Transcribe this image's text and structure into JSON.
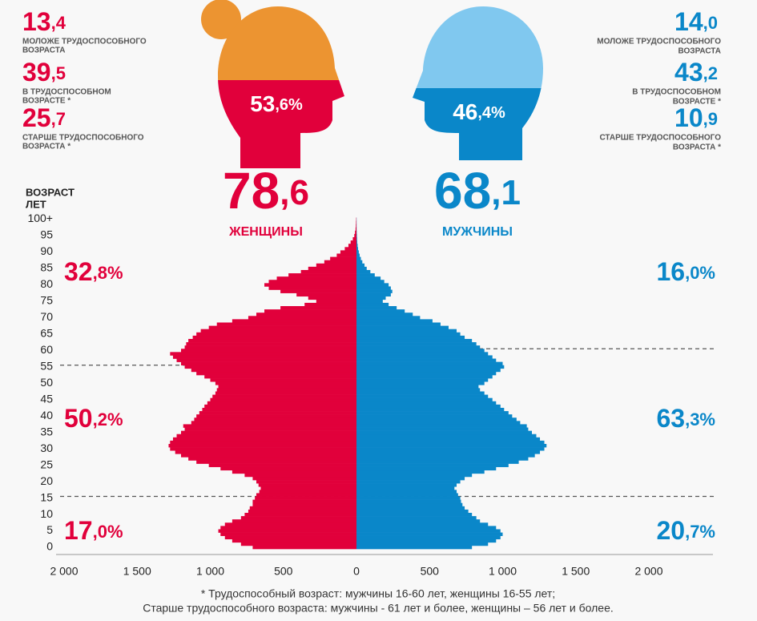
{
  "header": {
    "women_stats": [
      {
        "value": "13,4",
        "label": [
          "МОЛОЖЕ ТРУДОСПОСОБНОГО",
          "ВОЗРАСТА"
        ]
      },
      {
        "value": "39,5",
        "label": [
          "В ТРУДОСПОСОБНОМ",
          "ВОЗРАСТЕ *"
        ]
      },
      {
        "value": "25,7",
        "label": [
          "СТАРШЕ ТРУДОСПОСОБНОГО",
          "ВОЗРАСТА *"
        ]
      }
    ],
    "men_stats": [
      {
        "value": "14,0",
        "label": [
          "МОЛОЖЕ ТРУДОСПОСОБНОГО",
          "ВОЗРАСТА"
        ]
      },
      {
        "value": "43,2",
        "label": [
          "В ТРУДОСПОСОБНОМ",
          "ВОЗРАСТЕ *"
        ]
      },
      {
        "value": "10,9",
        "label": [
          "СТАРШЕ ТРУДОСПОСОБНОГО",
          "ВОЗРАСТА *"
        ]
      }
    ],
    "women_share": "53,6%",
    "men_share": "46,4%",
    "women_total": "78,6",
    "men_total": "68,1"
  },
  "chart_data": {
    "type": "pyramid",
    "y_label": [
      "ВОЗРАСТ",
      "ЛЕТ"
    ],
    "categories": [
      0,
      null,
      null,
      null,
      null,
      5,
      null,
      null,
      null,
      null,
      10,
      null,
      null,
      null,
      null,
      15,
      null,
      null,
      null,
      null,
      20,
      null,
      null,
      null,
      null,
      25,
      null,
      null,
      null,
      null,
      30,
      null,
      null,
      null,
      null,
      35,
      null,
      null,
      null,
      null,
      40,
      null,
      null,
      null,
      null,
      45,
      null,
      null,
      null,
      null,
      50,
      null,
      null,
      null,
      null,
      55,
      null,
      null,
      null,
      null,
      60,
      null,
      null,
      null,
      null,
      65,
      null,
      null,
      null,
      null,
      70,
      null,
      null,
      null,
      null,
      75,
      null,
      null,
      null,
      null,
      80,
      null,
      null,
      null,
      null,
      85,
      null,
      null,
      null,
      null,
      90,
      null,
      null,
      null,
      null,
      95,
      null,
      null,
      null,
      null,
      "100+"
    ],
    "series": [
      {
        "name": "ЖЕНЩИНЫ",
        "color": "#e1003b",
        "side": "left",
        "values": [
          710,
          790,
          850,
          900,
          930,
          945,
          930,
          900,
          850,
          790,
          765,
          740,
          730,
          710,
          710,
          695,
          685,
          665,
          655,
          670,
          685,
          710,
          765,
          850,
          930,
          1010,
          1095,
          1150,
          1200,
          1240,
          1275,
          1285,
          1275,
          1255,
          1230,
          1200,
          1175,
          1185,
          1130,
          1110,
          1095,
          1075,
          1055,
          1040,
          1020,
          1000,
          985,
          965,
          955,
          945,
          965,
          1000,
          1040,
          1095,
          1130,
          1175,
          1200,
          1230,
          1255,
          1275,
          1200,
          1175,
          1165,
          1150,
          1120,
          1095,
          1065,
          1010,
          955,
          850,
          740,
          685,
          630,
          520,
          355,
          275,
          330,
          410,
          520,
          600,
          630,
          600,
          545,
          465,
          380,
          330,
          275,
          220,
          180,
          135,
          110,
          80,
          55,
          40,
          25,
          15,
          10,
          6,
          4,
          3,
          2
        ],
        "working_age": [
          16,
          55
        ],
        "group_labels": [
          "32,8%",
          "50,2%",
          "17,0%"
        ]
      },
      {
        "name": "МУЖЧИНЫ",
        "color": "#0a87c9",
        "side": "right",
        "values": [
          790,
          900,
          955,
          985,
          1000,
          985,
          955,
          900,
          845,
          820,
          790,
          765,
          740,
          725,
          715,
          710,
          695,
          685,
          670,
          685,
          710,
          740,
          790,
          875,
          955,
          1040,
          1110,
          1175,
          1220,
          1255,
          1285,
          1300,
          1285,
          1255,
          1230,
          1200,
          1175,
          1165,
          1120,
          1095,
          1065,
          1040,
          1010,
          985,
          955,
          930,
          900,
          875,
          845,
          835,
          875,
          900,
          930,
          955,
          985,
          1010,
          1000,
          955,
          930,
          900,
          875,
          845,
          820,
          790,
          740,
          710,
          685,
          630,
          575,
          520,
          435,
          385,
          330,
          275,
          220,
          180,
          200,
          235,
          245,
          235,
          220,
          190,
          165,
          125,
          95,
          70,
          55,
          40,
          30,
          22,
          16,
          11,
          8,
          5,
          4,
          3,
          2,
          1,
          1,
          1,
          1
        ],
        "working_age": [
          16,
          60
        ],
        "group_labels": [
          "16,0%",
          "63,3%",
          "20,7%"
        ]
      }
    ],
    "xlim": [
      -2000,
      2000
    ],
    "xticks": [
      {
        "value": -2000,
        "label": "2 000"
      },
      {
        "value": -1500,
        "label": "1 500"
      },
      {
        "value": -1000,
        "label": "1 000"
      },
      {
        "value": -500,
        "label": "500"
      },
      0,
      500,
      {
        "value": 1000,
        "label": "1 000"
      },
      {
        "value": 1500,
        "label": "1 500"
      },
      {
        "value": 2000,
        "label": "2 000"
      }
    ]
  },
  "footnote": [
    "* Трудоспособный возраст: мужчины 16-60 лет, женщины 16-55 лет;",
    "Старше трудоспособного возраста: мужчины - 61 лет и более, женщины – 56 лет и более."
  ]
}
